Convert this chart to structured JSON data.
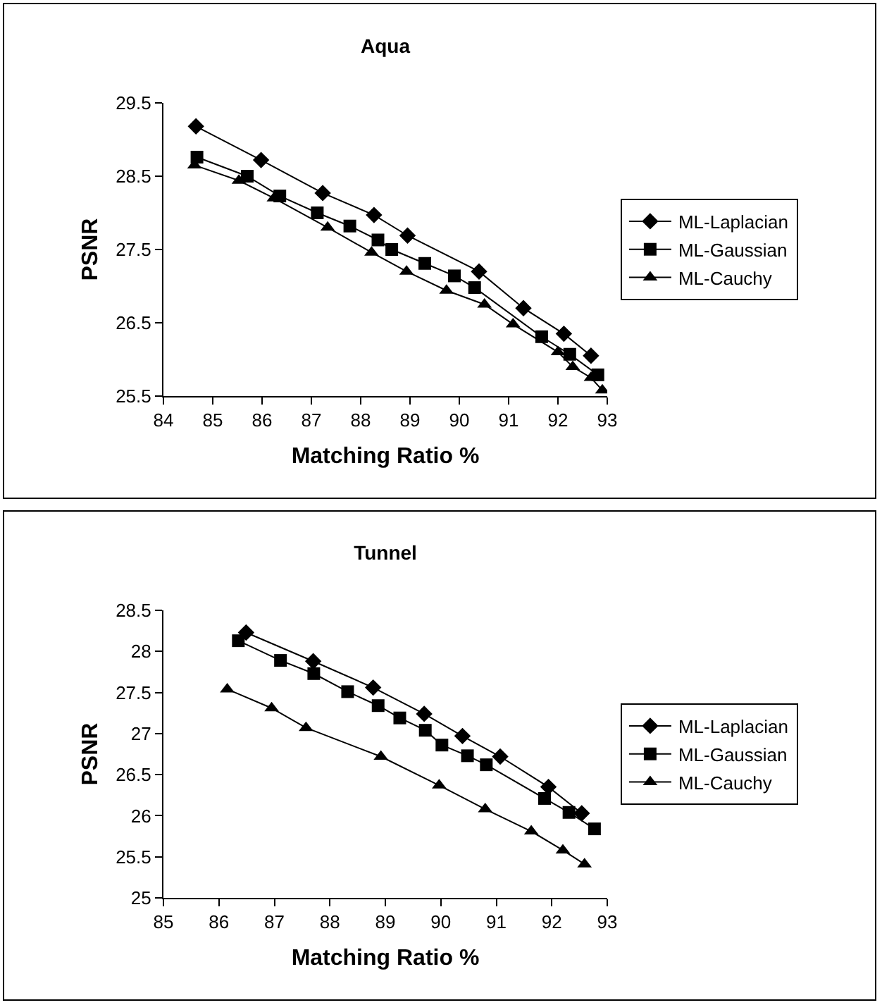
{
  "chart_data": [
    {
      "type": "line",
      "title": "Aqua",
      "xlabel": "Matching Ratio %",
      "ylabel": "PSNR",
      "xlim": [
        84,
        93
      ],
      "xticks": [
        84,
        85,
        86,
        87,
        88,
        89,
        90,
        91,
        92,
        93
      ],
      "ylim": [
        25.5,
        29.5
      ],
      "yticks": [
        25.5,
        26.5,
        27.5,
        28.5,
        29.5
      ],
      "grid": false,
      "legend": "right",
      "line_style": "solid",
      "series": [
        {
          "name": "ML-Laplacian",
          "color": "#000000",
          "marker": "diamond",
          "x": [
            84.66,
            85.98,
            87.23,
            88.27,
            88.95,
            90.4,
            91.3,
            92.12,
            92.67
          ],
          "values": [
            29.18,
            28.72,
            28.27,
            27.97,
            27.69,
            27.2,
            26.7,
            26.35,
            26.05
          ]
        },
        {
          "name": "ML-Gaussian",
          "color": "#000000",
          "marker": "square",
          "x": [
            84.68,
            85.7,
            86.36,
            87.12,
            87.78,
            88.35,
            88.63,
            89.3,
            89.9,
            90.31,
            91.67,
            92.24,
            92.81
          ],
          "values": [
            28.76,
            28.5,
            28.23,
            28.0,
            27.82,
            27.63,
            27.5,
            27.31,
            27.14,
            26.98,
            26.31,
            26.07,
            25.79
          ]
        },
        {
          "name": "ML-Cauchy",
          "color": "#000000",
          "marker": "triangle",
          "x": [
            84.63,
            85.53,
            86.24,
            87.33,
            88.22,
            88.93,
            89.74,
            90.51,
            91.09,
            92.0,
            92.3,
            92.67,
            92.9
          ],
          "values": [
            28.65,
            28.44,
            28.2,
            27.8,
            27.46,
            27.2,
            26.94,
            26.75,
            26.48,
            26.1,
            25.9,
            25.75,
            25.58
          ]
        }
      ]
    },
    {
      "type": "line",
      "title": "Tunnel",
      "xlabel": "Matching Ratio %",
      "ylabel": "PSNR",
      "xlim": [
        85,
        93
      ],
      "xticks": [
        85,
        86,
        87,
        88,
        89,
        90,
        91,
        92,
        93
      ],
      "ylim": [
        25,
        28.5
      ],
      "yticks": [
        25,
        25.5,
        26,
        26.5,
        27,
        27.5,
        28,
        28.5
      ],
      "grid": false,
      "legend": "right",
      "line_style": "solid",
      "series": [
        {
          "name": "ML-Laplacian",
          "color": "#000000",
          "marker": "diamond",
          "x": [
            86.49,
            87.7,
            88.78,
            89.7,
            90.39,
            91.07,
            91.94,
            92.54
          ],
          "values": [
            28.23,
            27.88,
            27.56,
            27.24,
            26.97,
            26.72,
            26.35,
            26.03
          ]
        },
        {
          "name": "ML-Gaussian",
          "color": "#000000",
          "marker": "square",
          "x": [
            86.35,
            87.11,
            87.71,
            88.32,
            88.87,
            89.26,
            89.72,
            90.02,
            90.48,
            90.82,
            91.87,
            92.31,
            92.77
          ],
          "values": [
            28.13,
            27.89,
            27.73,
            27.51,
            27.34,
            27.19,
            27.04,
            26.86,
            26.73,
            26.62,
            26.21,
            26.04,
            25.84
          ]
        },
        {
          "name": "ML-Cauchy",
          "color": "#000000",
          "marker": "triangle",
          "x": [
            86.15,
            86.95,
            87.57,
            88.92,
            89.97,
            90.8,
            91.63,
            92.2,
            92.59
          ],
          "values": [
            27.54,
            27.31,
            27.07,
            26.72,
            26.37,
            26.08,
            25.81,
            25.58,
            25.41
          ]
        }
      ]
    }
  ]
}
